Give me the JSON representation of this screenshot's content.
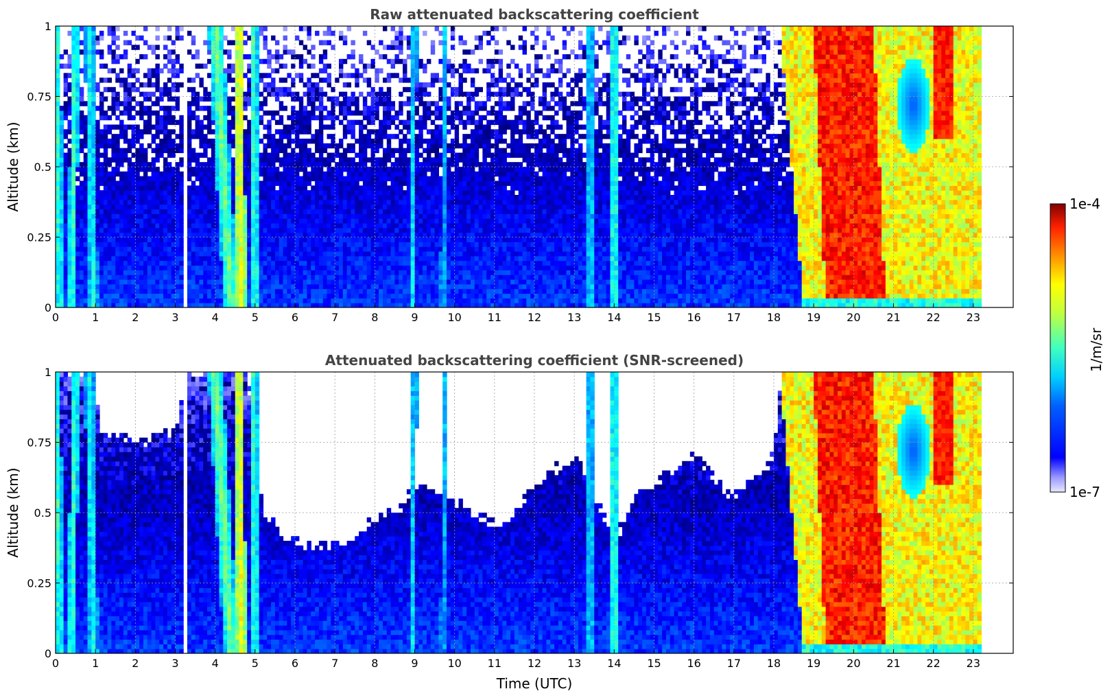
{
  "colorbar": {
    "max_label": "1e-4",
    "min_label": "1e-7",
    "unit_label": "1/m/sr",
    "colormap": "jet",
    "scale": "log",
    "range": [
      1e-07,
      0.0001
    ]
  },
  "chart_data": [
    {
      "type": "heatmap",
      "title": "Raw attenuated backscattering coefficient",
      "xlabel": "",
      "ylabel": "Altitude (km)",
      "xlim": [
        0,
        24
      ],
      "ylim": [
        0,
        1
      ],
      "x_ticks": [
        "0",
        "1",
        "2",
        "3",
        "4",
        "5",
        "6",
        "7",
        "8",
        "9",
        "10",
        "11",
        "12",
        "13",
        "14",
        "15",
        "16",
        "17",
        "18",
        "19",
        "20",
        "21",
        "22",
        "23"
      ],
      "y_ticks": [
        "0",
        "0.25",
        "0.5",
        "0.75",
        "1"
      ],
      "grid": true,
      "data_end_time": 23.15,
      "background_level_log10": -6.4,
      "noise_above_altitude": 0.4,
      "gaps": [
        [
          3.2,
          3.32
        ]
      ],
      "plumes": [
        {
          "start_top": 0.0,
          "start_bottom": 0.1,
          "level": -5.5,
          "width": 0.12
        },
        {
          "start_top": 0.5,
          "start_bottom": 0.4,
          "level": -5.5,
          "width": 0.1
        },
        {
          "start_top": 0.85,
          "start_bottom": 0.95,
          "level": -5.6,
          "width": 0.12
        },
        {
          "start_top": 4.0,
          "start_bottom": 4.4,
          "level": -5.3,
          "width": 0.18
        },
        {
          "start_top": 4.6,
          "start_bottom": 4.65,
          "level": -5.0,
          "width": 0.12
        },
        {
          "start_top": 4.95,
          "start_bottom": 5.0,
          "level": -5.5,
          "width": 0.1
        },
        {
          "start_top": 9.0,
          "start_bottom": 8.95,
          "level": -5.7,
          "width": 0.06
        },
        {
          "start_top": 9.75,
          "start_bottom": 9.7,
          "level": -5.8,
          "width": 0.06
        },
        {
          "start_top": 13.4,
          "start_bottom": 13.4,
          "level": -5.7,
          "width": 0.08
        },
        {
          "start_top": 14.0,
          "start_bottom": 14.0,
          "level": -5.5,
          "width": 0.08
        }
      ],
      "cloud_region": {
        "start_top": 18.15,
        "start_bottom": 18.75,
        "end": 23.15,
        "level_log10": -5.0,
        "base_altitude": 0.04
      },
      "cloud_core": {
        "start": 19.0,
        "end": 20.5,
        "level_log10": -4.4
      },
      "clear_patch": {
        "time": 21.5,
        "altitude": 0.72,
        "level_log10": -6.1
      }
    },
    {
      "type": "heatmap",
      "title": "Attenuated backscattering coefficient (SNR-screened)",
      "xlabel": "Time (UTC)",
      "ylabel": "Altitude (km)",
      "xlim": [
        0,
        24
      ],
      "ylim": [
        0,
        1
      ],
      "x_ticks": [
        "0",
        "1",
        "2",
        "3",
        "4",
        "5",
        "6",
        "7",
        "8",
        "9",
        "10",
        "11",
        "12",
        "13",
        "14",
        "15",
        "16",
        "17",
        "18",
        "19",
        "20",
        "21",
        "22",
        "23"
      ],
      "y_ticks": [
        "0",
        "0.25",
        "0.5",
        "0.75",
        "1"
      ],
      "grid": true,
      "data_end_time": 23.15,
      "background_level_log10": -6.4,
      "screen_profile": [
        [
          0.0,
          1.0
        ],
        [
          1.0,
          1.0
        ],
        [
          1.1,
          0.8
        ],
        [
          2.0,
          0.75
        ],
        [
          3.0,
          0.8
        ],
        [
          3.3,
          1.0
        ],
        [
          4.0,
          1.0
        ],
        [
          4.8,
          1.0
        ],
        [
          5.2,
          0.5
        ],
        [
          6.0,
          0.4
        ],
        [
          7.0,
          0.38
        ],
        [
          7.5,
          0.4
        ],
        [
          8.0,
          0.48
        ],
        [
          8.5,
          0.5
        ],
        [
          9.0,
          0.6
        ],
        [
          10.0,
          0.55
        ],
        [
          11.0,
          0.45
        ],
        [
          11.5,
          0.5
        ],
        [
          12.0,
          0.6
        ],
        [
          13.0,
          0.7
        ],
        [
          13.5,
          0.55
        ],
        [
          14.0,
          0.4
        ],
        [
          14.5,
          0.55
        ],
        [
          15.0,
          0.6
        ],
        [
          16.0,
          0.7
        ],
        [
          17.0,
          0.55
        ],
        [
          18.0,
          0.7
        ],
        [
          18.2,
          1.0
        ],
        [
          23.15,
          1.0
        ]
      ],
      "plumes": [
        {
          "start_top": 0.0,
          "start_bottom": 0.1,
          "level": -5.5,
          "width": 0.12
        },
        {
          "start_top": 0.5,
          "start_bottom": 0.4,
          "level": -5.5,
          "width": 0.1
        },
        {
          "start_top": 0.85,
          "start_bottom": 0.95,
          "level": -5.6,
          "width": 0.12
        },
        {
          "start_top": 4.0,
          "start_bottom": 4.4,
          "level": -5.3,
          "width": 0.18
        },
        {
          "start_top": 4.6,
          "start_bottom": 4.65,
          "level": -5.0,
          "width": 0.12
        },
        {
          "start_top": 4.95,
          "start_bottom": 5.0,
          "level": -5.5,
          "width": 0.1
        },
        {
          "start_top": 9.0,
          "start_bottom": 8.95,
          "level": -5.7,
          "width": 0.06
        },
        {
          "start_top": 9.75,
          "start_bottom": 9.7,
          "level": -5.8,
          "width": 0.06
        },
        {
          "start_top": 13.4,
          "start_bottom": 13.4,
          "level": -5.7,
          "width": 0.08
        },
        {
          "start_top": 14.0,
          "start_bottom": 14.0,
          "level": -5.5,
          "width": 0.08
        }
      ],
      "gaps": [
        [
          3.2,
          3.32
        ]
      ],
      "cloud_region": {
        "start_top": 18.15,
        "start_bottom": 18.75,
        "end": 23.15,
        "level_log10": -5.0,
        "base_altitude": 0.04
      },
      "cloud_core": {
        "start": 19.0,
        "end": 20.5,
        "level_log10": -4.4
      },
      "clear_patch": {
        "time": 21.5,
        "altitude": 0.72,
        "level_log10": -6.1
      }
    }
  ]
}
